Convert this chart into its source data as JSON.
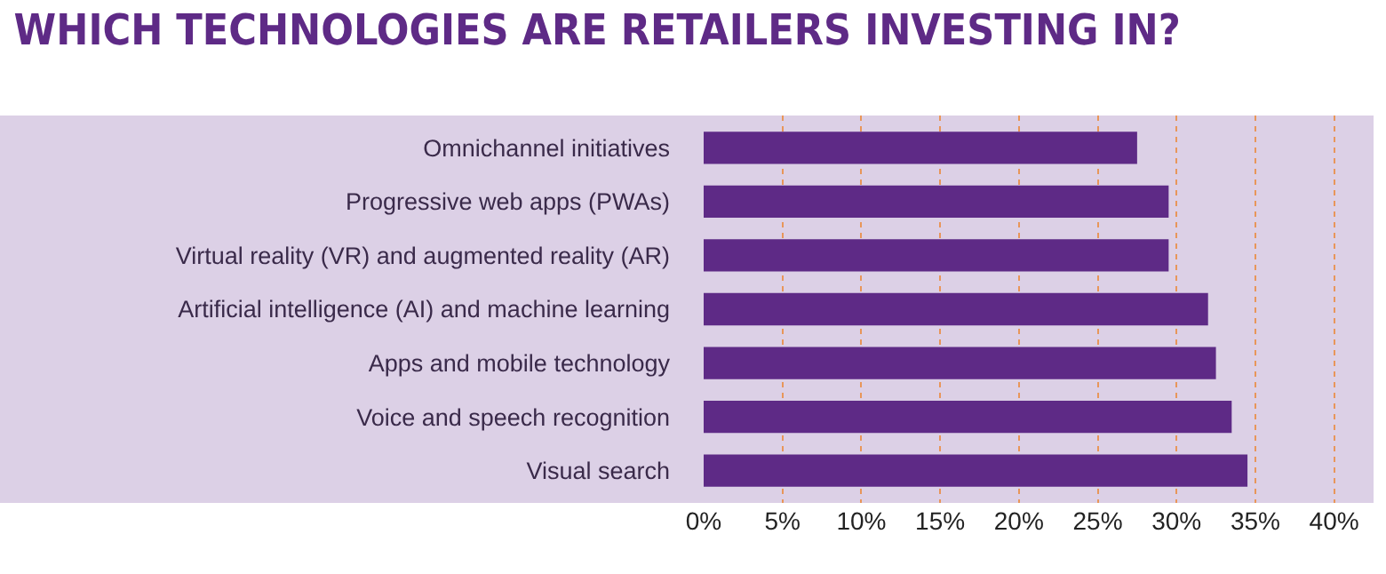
{
  "chart_data": {
    "type": "bar",
    "orientation": "horizontal",
    "title": "WHICH TECHNOLOGIES ARE RETAILERS INVESTING IN?",
    "categories": [
      "Omnichannel initiatives",
      "Progressive web apps (PWAs)",
      "Virtual reality (VR) and augmented reality (AR)",
      "Artificial intelligence (AI) and machine learning",
      "Apps and mobile technology",
      "Voice and speech recognition",
      "Visual search"
    ],
    "values": [
      27.5,
      29.5,
      29.5,
      32,
      32.5,
      33.5,
      34.5
    ],
    "color": "#5e2a86",
    "xlim": [
      0,
      42.5
    ],
    "xticks": [
      {
        "value": 0,
        "label": "0%"
      },
      {
        "value": 5,
        "label": "5%"
      },
      {
        "value": 10,
        "label": "10%"
      },
      {
        "value": 15,
        "label": "15%"
      },
      {
        "value": 20,
        "label": "20%"
      },
      {
        "value": 25,
        "label": "25%"
      },
      {
        "value": 30,
        "label": "30%"
      },
      {
        "value": 35,
        "label": "35%"
      },
      {
        "value": 40,
        "label": "40%"
      }
    ],
    "grid": "x"
  }
}
